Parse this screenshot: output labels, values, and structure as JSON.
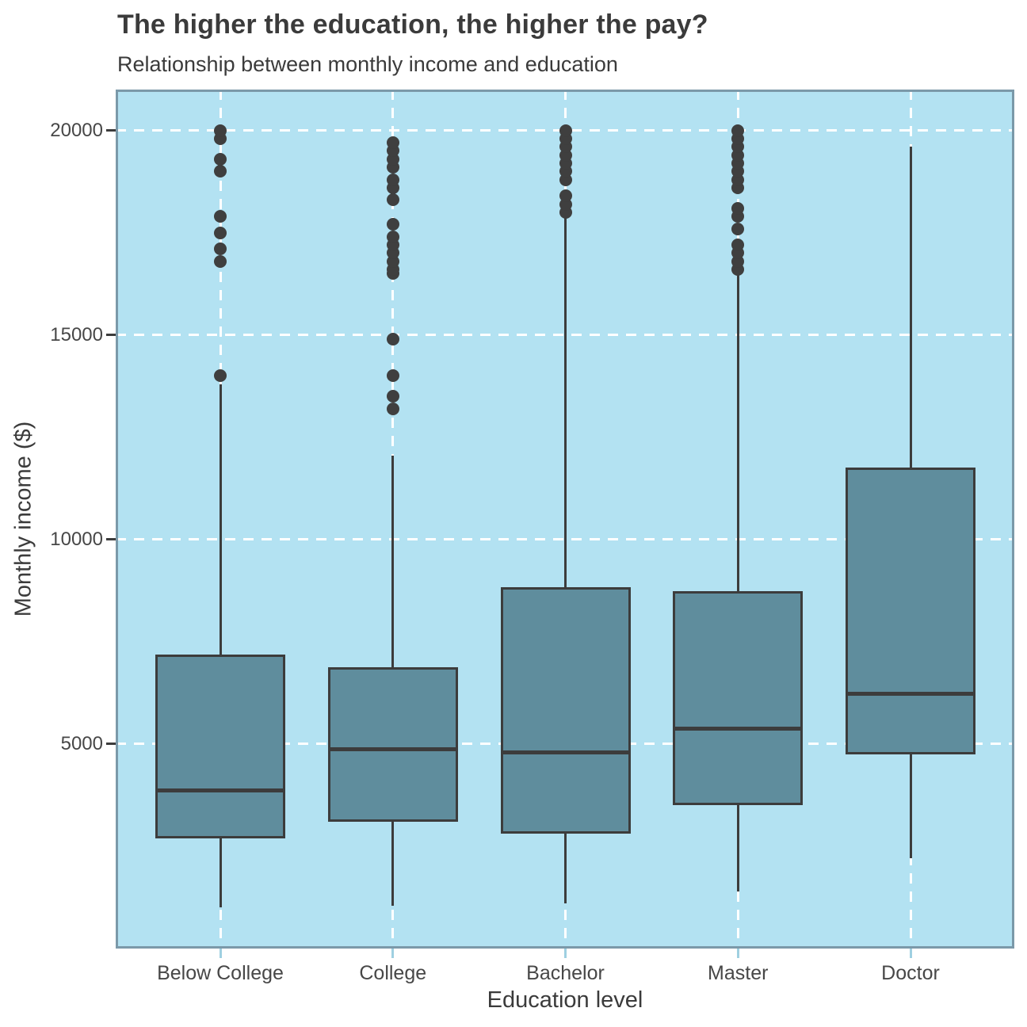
{
  "chart_data": {
    "type": "boxplot",
    "title": "The higher the education, the higher the pay?",
    "subtitle": "Relationship between monthly income and education",
    "xlabel": "Education level",
    "ylabel": "Monthly income ($)",
    "ylim": [
      0,
      21000
    ],
    "yticks": [
      5000,
      10000,
      15000,
      20000
    ],
    "legend": "none",
    "grid": "white dashed horizontal lines at yticks and vertical lines at each category center on light-blue panel",
    "categories": [
      "Below College",
      "College",
      "Bachelor",
      "Master",
      "Doctor"
    ],
    "series": [
      {
        "category": "Below College",
        "whisker_low": 1010,
        "q1": 2700,
        "median": 3860,
        "q3": 7180,
        "whisker_high": 13800,
        "outliers": [
          14000,
          16800,
          17100,
          17500,
          17900,
          19000,
          19300,
          19800,
          20000
        ]
      },
      {
        "category": "College",
        "whisker_low": 1050,
        "q1": 3090,
        "median": 4880,
        "q3": 6870,
        "whisker_high": 12050,
        "outliers": [
          13200,
          13500,
          14000,
          14900,
          16500,
          16600,
          16800,
          17000,
          17200,
          17400,
          17700,
          18300,
          18600,
          18800,
          19100,
          19300,
          19500,
          19700
        ]
      },
      {
        "category": "Bachelor",
        "whisker_low": 1100,
        "q1": 2800,
        "median": 4790,
        "q3": 8840,
        "whisker_high": 17900,
        "outliers": [
          18000,
          18200,
          18400,
          18800,
          19000,
          19200,
          19400,
          19600,
          19800,
          20000
        ]
      },
      {
        "category": "Master",
        "whisker_low": 1400,
        "q1": 3500,
        "median": 5370,
        "q3": 8740,
        "whisker_high": 16470,
        "outliers": [
          16600,
          16800,
          17000,
          17200,
          17600,
          17900,
          18100,
          18600,
          18800,
          19000,
          19200,
          19400,
          19600,
          19800,
          20000
        ]
      },
      {
        "category": "Doctor",
        "whisker_low": 2200,
        "q1": 4750,
        "median": 6230,
        "q3": 11750,
        "whisker_high": 19600,
        "outliers": []
      }
    ],
    "colors": {
      "panel_background": "#b3e2f2",
      "box_fill": "#5f8d9d",
      "box_border": "#3c3c3c",
      "median_line": "#3c3c3c",
      "outlier_dot": "#3f3f3f",
      "gridline": "#ffffff",
      "panel_frame": "#7b99a9",
      "x_tick_mark": "#9fd0e1",
      "y_tick_mark": "#3c3c3c",
      "text": "#3b3b3b"
    }
  }
}
